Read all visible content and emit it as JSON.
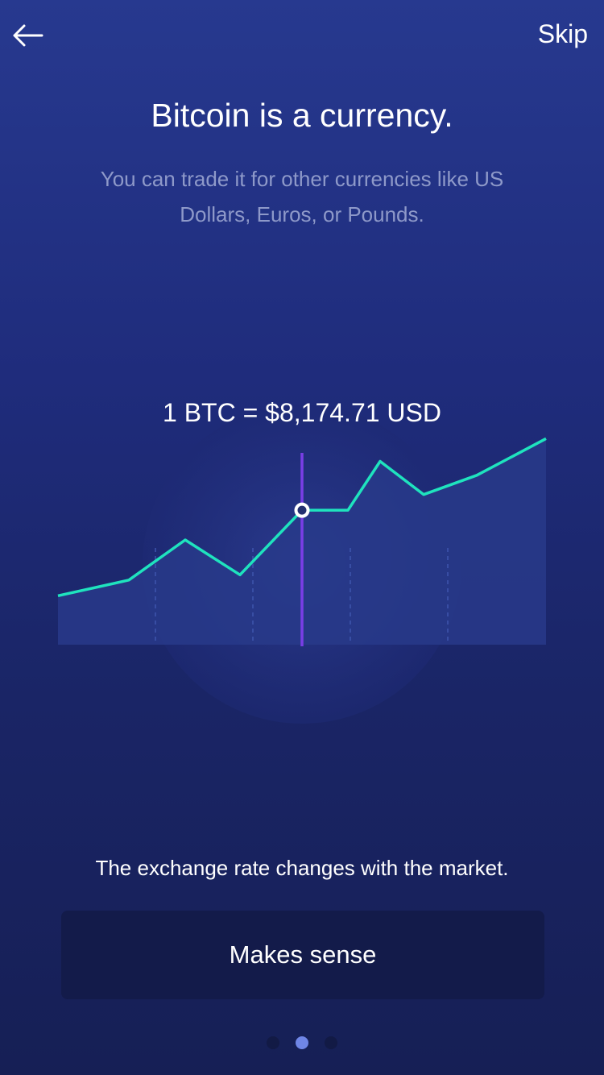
{
  "header": {
    "back_icon": "arrow-left-icon",
    "skip_label": "Skip"
  },
  "intro": {
    "title": "Bitcoin is a currency.",
    "subtitle": "You can trade it for other currencies like US Dollars, Euros, or Pounds."
  },
  "rate_label": "1 BTC = $8,174.71 USD",
  "chart_data": {
    "type": "area",
    "title": "",
    "xlabel": "",
    "ylabel": "",
    "x": [
      0,
      1,
      2,
      3,
      4,
      5,
      6,
      7,
      8
    ],
    "values": [
      2.8,
      3.7,
      6.0,
      4.0,
      7.7,
      7.7,
      10.5,
      8.6,
      9.7
    ],
    "last_value": 11.8,
    "ylim": [
      0,
      12
    ],
    "highlight_index": 4,
    "grid": "dashed-vertical",
    "colors": {
      "line": "#1fe3be",
      "fill": "#283a8a",
      "highlight": "#7a3ee6",
      "marker_fill": "#243070",
      "marker_stroke": "#ffffff"
    }
  },
  "caption": "The exchange rate changes with the market.",
  "cta": {
    "label": "Makes sense"
  },
  "pager": {
    "count": 3,
    "active_index": 1
  }
}
